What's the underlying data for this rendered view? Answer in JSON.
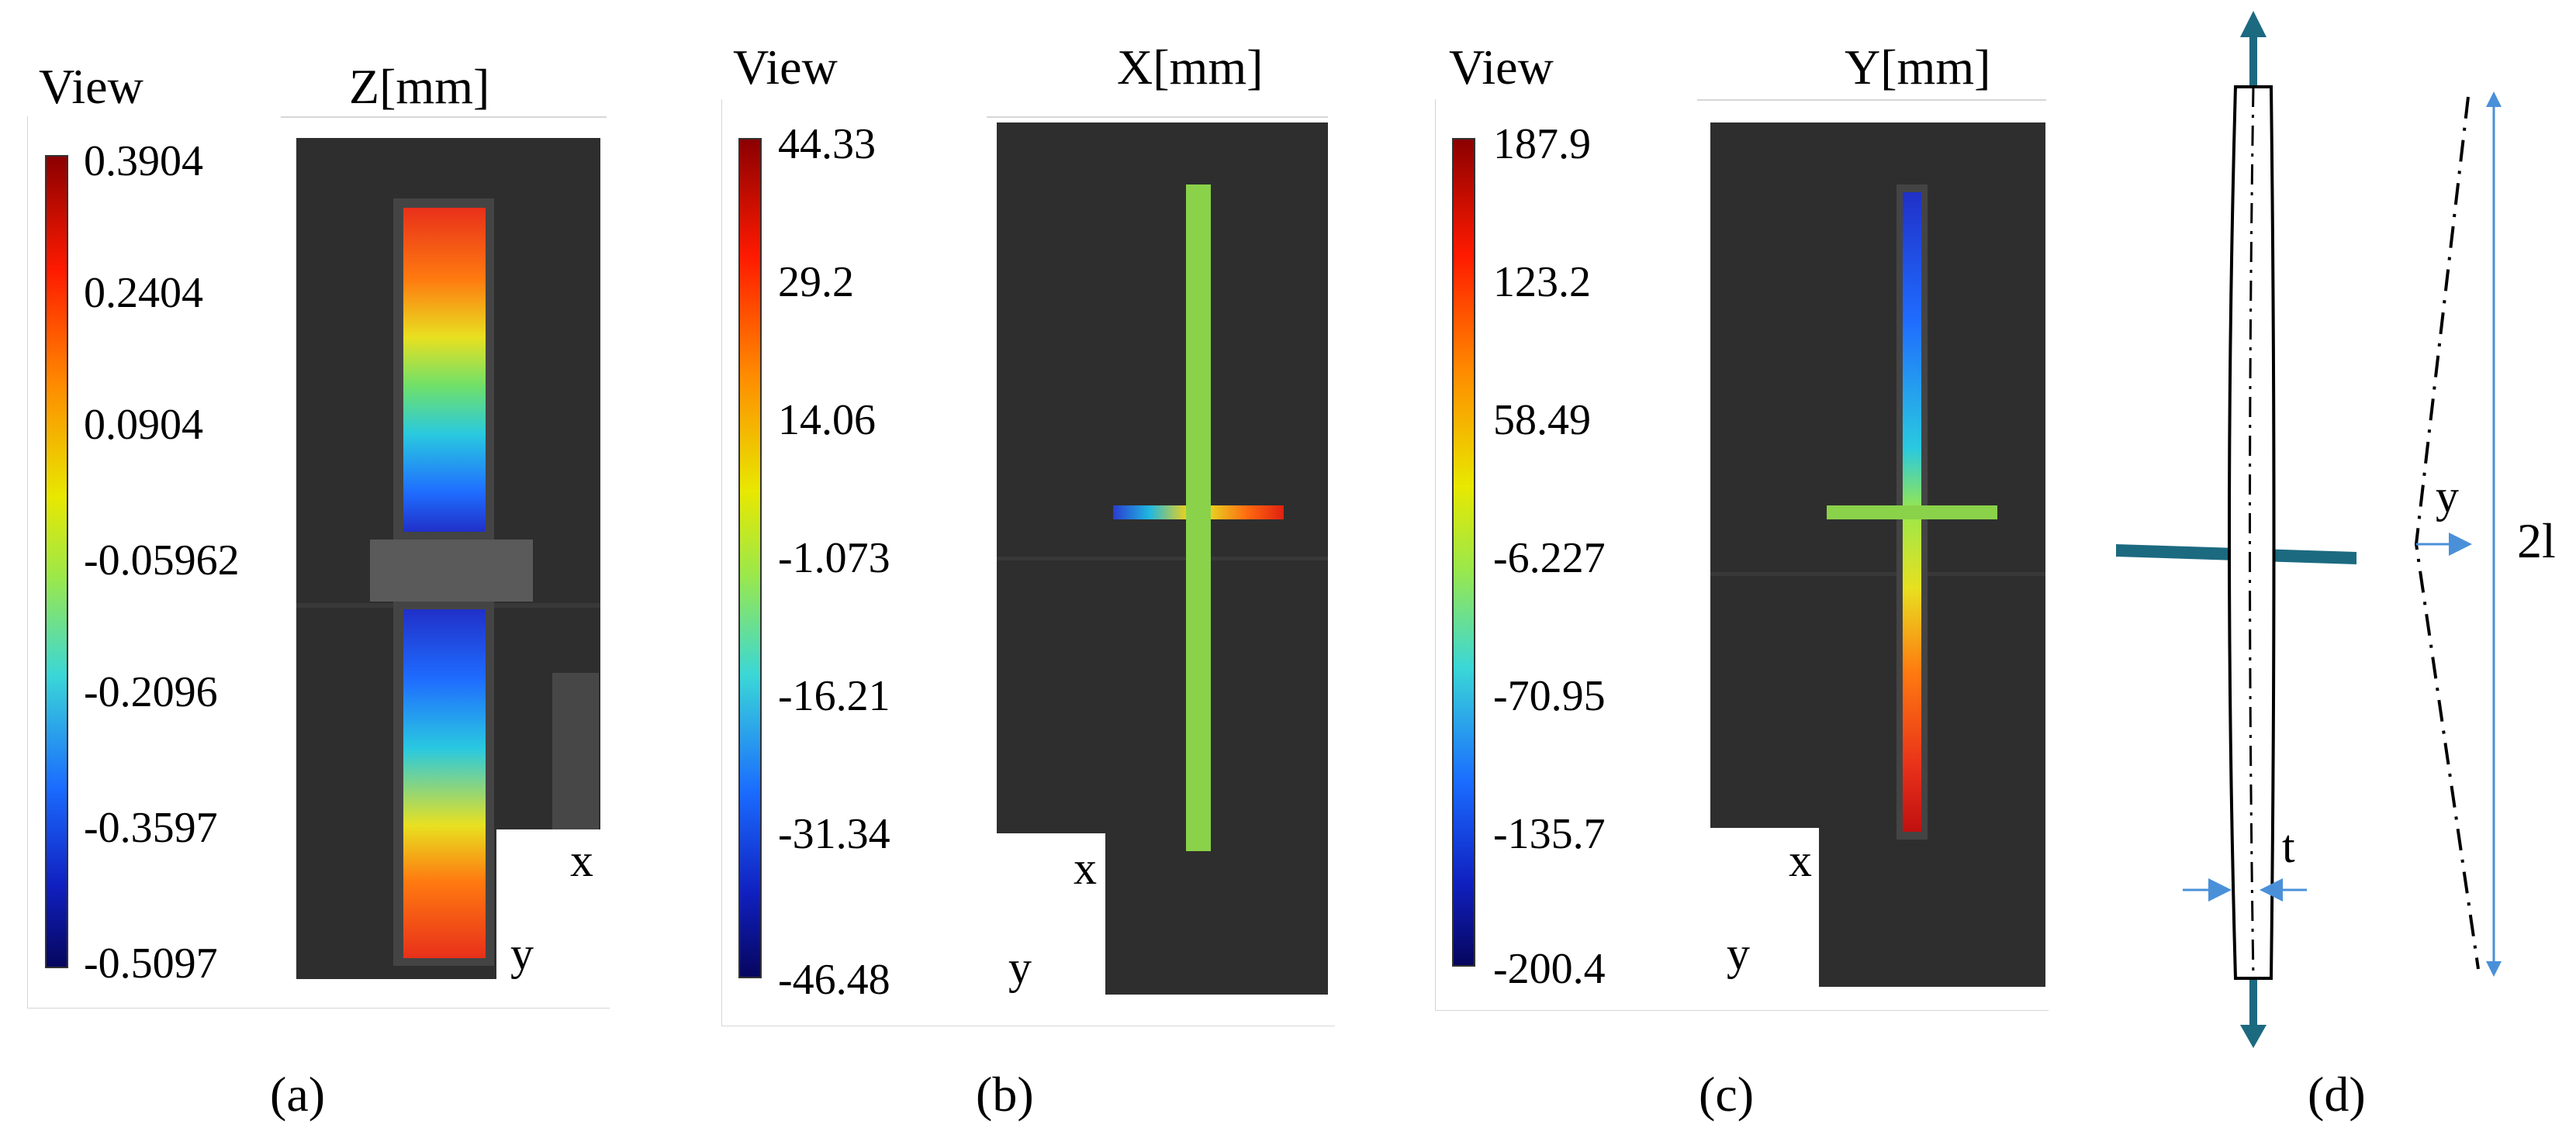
{
  "panels": [
    {
      "id": "a",
      "view_label": "View",
      "title": "Z[mm]",
      "ticks": [
        "0.3904",
        "0.2404",
        "0.0904",
        "-0.05962",
        "-0.2096",
        "-0.3597",
        "-0.5097"
      ],
      "axis_x": "x",
      "axis_y": "y",
      "label": "(a)"
    },
    {
      "id": "b",
      "view_label": "View",
      "title": "X[mm]",
      "ticks": [
        "44.33",
        "29.2",
        "14.06",
        "-1.073",
        "-16.21",
        "-31.34",
        "-46.48"
      ],
      "axis_x": "x",
      "axis_y": "y",
      "label": "(b)"
    },
    {
      "id": "c",
      "view_label": "View",
      "title": "Y[mm]",
      "ticks": [
        "187.9",
        "123.2",
        "58.49",
        "-6.227",
        "-70.95",
        "-135.7",
        "-200.4"
      ],
      "axis_x": "x",
      "axis_y": "y",
      "label": "(c)"
    }
  ],
  "schematic": {
    "label": "(d)",
    "deflection_label": "y",
    "thickness_label": "t",
    "length_label": "2l",
    "specimen_color": "#1c6a80",
    "dimension_color": "#4a90d9"
  },
  "colormap": [
    "#8b0000",
    "#ff1a00",
    "#ff8a00",
    "#e8e800",
    "#9be84a",
    "#3ad7d7",
    "#1a6bff",
    "#1020c0",
    "#06065e"
  ]
}
